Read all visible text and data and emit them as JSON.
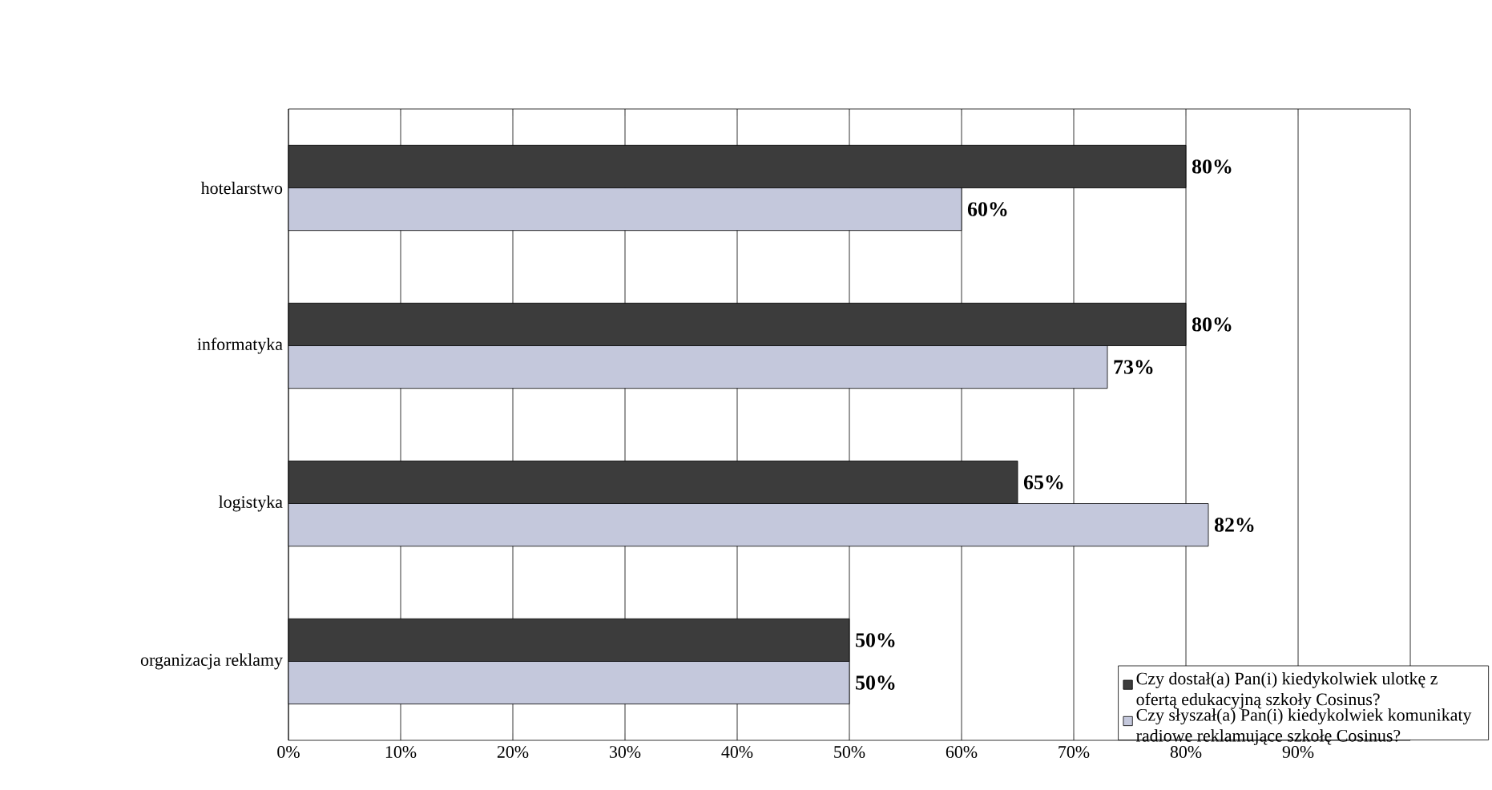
{
  "chart_data": {
    "type": "bar",
    "orientation": "horizontal",
    "categories": [
      "hotelarstwo",
      "informatyka",
      "logistyka",
      "organizacja reklamy"
    ],
    "series": [
      {
        "name": "Czy dostał(a) Pan(i) kiedykolwiek ulotkę z ofertą edukacyjną szkoły Cosinus?",
        "color": "#3c3c3c",
        "values": [
          80,
          80,
          65,
          50
        ],
        "value_labels": [
          "80%",
          "80%",
          "65%",
          "50%"
        ]
      },
      {
        "name": "Czy słyszał(a) Pan(i) kiedykolwiek komunikaty radiowe reklamujące szkołę Cosinus?",
        "color": "#c4c8dc",
        "values": [
          60,
          73,
          82,
          50
        ],
        "value_labels": [
          "60%",
          "73%",
          "82%",
          "50%"
        ]
      }
    ],
    "xlim": [
      0,
      100
    ],
    "xticks": [
      {
        "value": 0,
        "label": "0%"
      },
      {
        "value": 10,
        "label": "10%"
      },
      {
        "value": 20,
        "label": "20%"
      },
      {
        "value": 30,
        "label": "30%"
      },
      {
        "value": 40,
        "label": "40%"
      },
      {
        "value": 50,
        "label": "50%"
      },
      {
        "value": 60,
        "label": "60%"
      },
      {
        "value": 70,
        "label": "70%"
      },
      {
        "value": 80,
        "label": "80%"
      },
      {
        "value": 90,
        "label": "90%"
      }
    ],
    "grid": "x",
    "legend": "bottom right"
  }
}
